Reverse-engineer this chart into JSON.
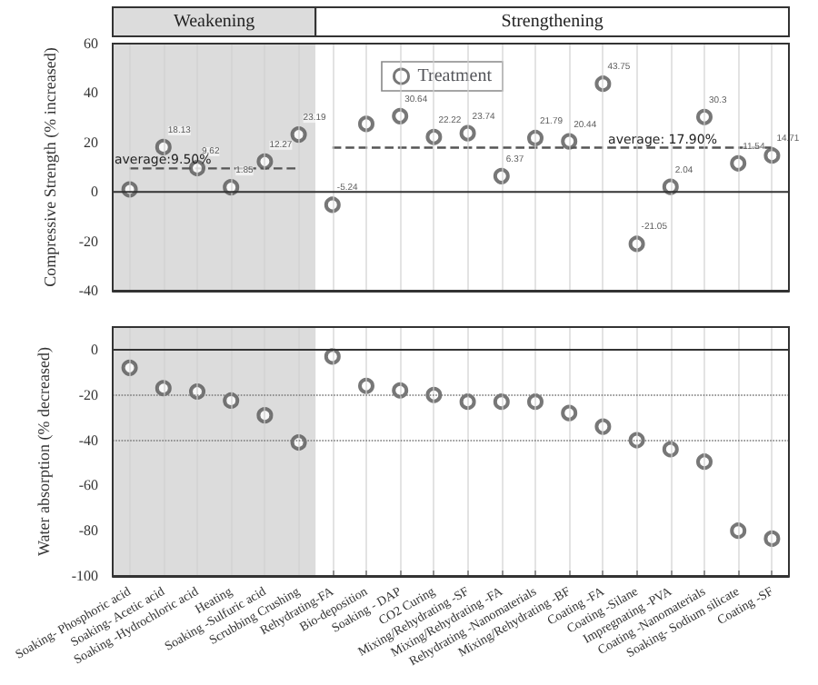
{
  "chart_data": [
    {
      "type": "scatter",
      "categories": [
        "Soaking- Phosphoric acid",
        "Soaking- Acetic acid",
        "Soaking -Hydrochloric acid",
        "Heating",
        "Soaking -Sulfuric acid",
        "Scrubbing Crushing",
        "Rehydrating-FA",
        "Bio-deposition",
        "Soaking - DAP",
        "CO2 Curing",
        "Mixing/Rehydrating -SF",
        "Mixing/Rehydrating -FA",
        "Rehydrating -Nanomaterials",
        "Mixing/Rehydrating -BF",
        "Coating -FA",
        "Coating -Silane",
        "Impregnating -PVA",
        "Coating -Nanomaterials",
        "Soaking- Sodium silicate",
        "Coating -SF"
      ],
      "ylabel": "Compressive Strength (% increased)",
      "ylim": [
        -40,
        60
      ],
      "yticks": [
        -40,
        -20,
        0,
        20,
        40,
        60
      ],
      "series": [
        {
          "name": "Treatment",
          "color": "#555555",
          "values": [
            1,
            18.13,
            9.62,
            1.85,
            12.27,
            23.19,
            -5.24,
            27.5,
            30.64,
            22.22,
            23.74,
            6.37,
            21.79,
            20.44,
            43.75,
            -21.05,
            2.04,
            30.3,
            11.54,
            14.71
          ],
          "value_labels": [
            null,
            "18.13",
            "9.62",
            "1.85",
            "12.27",
            "23.19",
            "-5.24",
            null,
            "30.64",
            "22.22",
            "23.74",
            "6.37",
            "21.79",
            "20.44",
            "43.75",
            "-21.05",
            "2.04",
            "30.3",
            "11.54",
            "14.71"
          ]
        },
        {
          "type": "line",
          "color": "#555555",
          "line_style": "dashed",
          "marker": "none",
          "x": [
            "Soaking- Phosphoric acid",
            "Scrubbing Crushing"
          ],
          "values": [
            9.5,
            9.5
          ]
        },
        {
          "type": "line",
          "color": "#555555",
          "line_style": "dashed",
          "marker": "none",
          "x": [
            "Rehydrating-FA",
            "Coating -SF"
          ],
          "values": [
            17.9,
            17.9
          ]
        }
      ],
      "annotations": [
        {
          "text": "average:9.50%",
          "x": "Soaking- Phosphoric acid",
          "y": 9.5
        },
        {
          "text": "average: 17.90%",
          "x": "Coating -FA",
          "y": 17.9
        }
      ],
      "bands": [
        {
          "axis": "x",
          "from": "Soaking- Phosphoric acid",
          "to": "Scrubbing Crushing",
          "label": "Weakening",
          "color": "#dcdcdc"
        },
        {
          "axis": "x",
          "from": "Rehydrating-FA",
          "to": "Coating -SF",
          "label": "Strengthening",
          "color": "#ffffff"
        }
      ],
      "marker": "circle",
      "legend": "top",
      "grid": "x",
      "tick_labels": "y"
    },
    {
      "type": "scatter",
      "categories": [
        "Soaking- Phosphoric acid",
        "Soaking- Acetic acid",
        "Soaking -Hydrochloric acid",
        "Heating",
        "Soaking -Sulfuric acid",
        "Scrubbing Crushing",
        "Rehydrating-FA",
        "Bio-deposition",
        "Soaking - DAP",
        "CO2 Curing",
        "Mixing/Rehydrating -SF",
        "Mixing/Rehydrating -FA",
        "Rehydrating -Nanomaterials",
        "Mixing/Rehydrating -BF",
        "Coating -FA",
        "Coating -Silane",
        "Impregnating -PVA",
        "Coating -Nanomaterials",
        "Soaking- Sodium silicate",
        "Coating -SF"
      ],
      "ylabel": "Water absorption (% decreased)",
      "ylim": [
        -100,
        10
      ],
      "yticks": [
        -100,
        -80,
        -60,
        -40,
        -20,
        0
      ],
      "color": "#555555",
      "values": [
        -8,
        -17,
        -18.5,
        -22.5,
        -29,
        -41,
        -3,
        -16,
        -18,
        -20,
        -23,
        -23,
        -23,
        -28,
        -34,
        -40,
        -44,
        -49.5,
        -80,
        -83.5
      ],
      "ref_lines": [
        {
          "axis": "y",
          "value": -20,
          "line_style": "dotted",
          "color": "#777777"
        },
        {
          "axis": "y",
          "value": -40,
          "line_style": "dotted",
          "color": "#777777"
        }
      ],
      "bands": [
        {
          "axis": "x",
          "from": "Soaking- Phosphoric acid",
          "to": "Scrubbing Crushing",
          "color": "#dcdcdc"
        }
      ],
      "marker": "circle",
      "grid": "x"
    }
  ]
}
